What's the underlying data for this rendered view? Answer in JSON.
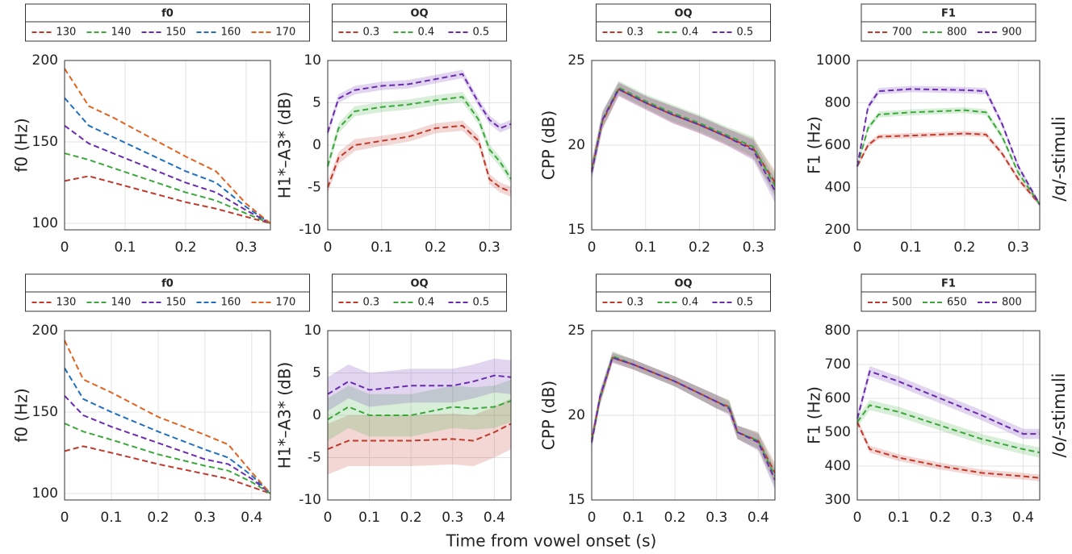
{
  "chart_data": [
    {
      "type": "line",
      "legend_title": "f0",
      "ylabel": "f0 (Hz)",
      "x": [
        0,
        0.04,
        0.08,
        0.12,
        0.16,
        0.2,
        0.25,
        0.3,
        0.34
      ],
      "xlim": [
        0,
        0.34
      ],
      "xticks": [
        0,
        0.1,
        0.2,
        0.3
      ],
      "ylim": [
        96,
        200
      ],
      "yticks": [
        100,
        150,
        200
      ],
      "grid": true,
      "series": [
        {
          "name": "130",
          "color": "#c0392b",
          "values": [
            126,
            129,
            125,
            121,
            117,
            113,
            109,
            104,
            100
          ]
        },
        {
          "name": "140",
          "color": "#3aa83a",
          "values": [
            143,
            139,
            134,
            129,
            124,
            119,
            114,
            106,
            100
          ]
        },
        {
          "name": "150",
          "color": "#6a2bb0",
          "values": [
            160,
            149,
            143,
            137,
            131,
            125,
            119,
            108,
            100
          ]
        },
        {
          "name": "160",
          "color": "#1f6fc0",
          "values": [
            177,
            160,
            153,
            146,
            139,
            132,
            125,
            110,
            100
          ]
        },
        {
          "name": "170",
          "color": "#e2621f",
          "values": [
            195,
            172,
            165,
            157,
            149,
            141,
            132,
            112,
            100
          ]
        }
      ]
    },
    {
      "type": "line",
      "legend_title": "OQ",
      "ylabel": "H1*–A3* (dB)",
      "x": [
        0,
        0.02,
        0.05,
        0.1,
        0.15,
        0.2,
        0.25,
        0.28,
        0.3,
        0.32,
        0.34
      ],
      "xlim": [
        0,
        0.34
      ],
      "xticks": [
        0,
        0.1,
        0.2,
        0.3
      ],
      "ylim": [
        -10,
        10
      ],
      "yticks": [
        -10,
        -5,
        0,
        5,
        10
      ],
      "grid": true,
      "series": [
        {
          "name": "0.3",
          "color": "#c0392b",
          "values": [
            -5,
            -1.5,
            0,
            0.5,
            1,
            2,
            2.3,
            0.5,
            -4,
            -5,
            -5.5
          ],
          "errors": [
            0.7,
            0.7,
            0.7,
            0.6,
            0.6,
            0.6,
            0.6,
            0.6,
            0.6,
            0.6,
            0.6
          ]
        },
        {
          "name": "0.4",
          "color": "#3aa83a",
          "values": [
            -2.5,
            2,
            4,
            4.5,
            4.8,
            5.3,
            5.7,
            3,
            -0.5,
            -2,
            -4
          ],
          "errors": [
            0.6,
            0.6,
            0.6,
            0.6,
            0.6,
            0.6,
            0.6,
            0.6,
            0.6,
            0.6,
            0.6
          ]
        },
        {
          "name": "0.5",
          "color": "#6a2bb0",
          "values": [
            1.5,
            5.5,
            6.5,
            7,
            7.2,
            7.8,
            8.4,
            5,
            3,
            2,
            2.5
          ],
          "errors": [
            0.5,
            0.5,
            0.5,
            0.5,
            0.5,
            0.5,
            0.5,
            0.5,
            0.5,
            0.5,
            0.5
          ]
        }
      ]
    },
    {
      "type": "line",
      "legend_title": "OQ",
      "ylabel": "CPP (dB)",
      "x": [
        0,
        0.02,
        0.05,
        0.1,
        0.15,
        0.2,
        0.25,
        0.3,
        0.34
      ],
      "xlim": [
        0,
        0.34
      ],
      "xticks": [
        0,
        0.1,
        0.2,
        0.3
      ],
      "ylim": [
        15,
        25
      ],
      "yticks": [
        15,
        20,
        25
      ],
      "grid": true,
      "series": [
        {
          "name": "0.3",
          "color": "#c0392b",
          "values": [
            18.6,
            21.4,
            23.3,
            22.5,
            21.8,
            21.2,
            20.5,
            19.8,
            17.8
          ],
          "errors": [
            0.5,
            0.5,
            0.4,
            0.4,
            0.5,
            0.5,
            0.5,
            0.6,
            0.7
          ]
        },
        {
          "name": "0.4",
          "color": "#3aa83a",
          "values": [
            18.5,
            21.5,
            23.4,
            22.6,
            21.9,
            21.3,
            20.6,
            19.9,
            17.6
          ],
          "errors": [
            0.5,
            0.5,
            0.4,
            0.4,
            0.5,
            0.5,
            0.5,
            0.6,
            0.7
          ]
        },
        {
          "name": "0.5",
          "color": "#6a2bb0",
          "values": [
            18.4,
            21.5,
            23.3,
            22.5,
            21.8,
            21.2,
            20.5,
            19.7,
            17.3
          ],
          "errors": [
            0.5,
            0.5,
            0.4,
            0.4,
            0.5,
            0.5,
            0.5,
            0.6,
            0.7
          ]
        }
      ]
    },
    {
      "type": "line",
      "legend_title": "F1",
      "ylabel": "F1 (Hz)",
      "x": [
        0,
        0.02,
        0.04,
        0.1,
        0.2,
        0.24,
        0.27,
        0.3,
        0.34
      ],
      "xlim": [
        0,
        0.34
      ],
      "xticks": [
        0,
        0.1,
        0.2,
        0.3
      ],
      "ylim": [
        200,
        1000
      ],
      "yticks": [
        200,
        400,
        600,
        800,
        1000
      ],
      "grid": true,
      "series": [
        {
          "name": "700",
          "color": "#c0392b",
          "values": [
            500,
            600,
            640,
            645,
            655,
            650,
            560,
            440,
            320
          ],
          "errors": [
            10,
            12,
            12,
            12,
            12,
            12,
            12,
            12,
            10
          ]
        },
        {
          "name": "800",
          "color": "#3aa83a",
          "values": [
            500,
            680,
            745,
            755,
            765,
            755,
            640,
            470,
            320
          ],
          "errors": [
            10,
            14,
            14,
            14,
            14,
            14,
            14,
            12,
            10
          ]
        },
        {
          "name": "900",
          "color": "#6a2bb0",
          "values": [
            500,
            780,
            855,
            865,
            860,
            855,
            700,
            500,
            320
          ],
          "errors": [
            10,
            15,
            15,
            15,
            15,
            15,
            15,
            12,
            10
          ]
        }
      ]
    },
    {
      "type": "line",
      "legend_title": "f0",
      "ylabel": "f0 (Hz)",
      "x": [
        0,
        0.04,
        0.1,
        0.2,
        0.3,
        0.35,
        0.4,
        0.44
      ],
      "xlim": [
        0,
        0.44
      ],
      "xticks": [
        0,
        0.1,
        0.2,
        0.3,
        0.4
      ],
      "ylim": [
        96,
        200
      ],
      "yticks": [
        100,
        150,
        200
      ],
      "grid": true,
      "series": [
        {
          "name": "130",
          "color": "#c0392b",
          "values": [
            126,
            129,
            125,
            118,
            112,
            109,
            104,
            100
          ]
        },
        {
          "name": "140",
          "color": "#3aa83a",
          "values": [
            143,
            138,
            133,
            124,
            117,
            114,
            107,
            100
          ]
        },
        {
          "name": "150",
          "color": "#6a2bb0",
          "values": [
            160,
            148,
            141,
            131,
            121,
            118,
            109,
            100
          ]
        },
        {
          "name": "160",
          "color": "#1f6fc0",
          "values": [
            177,
            158,
            150,
            138,
            127,
            122,
            111,
            100
          ]
        },
        {
          "name": "170",
          "color": "#e2621f",
          "values": [
            194,
            170,
            162,
            147,
            136,
            130,
            113,
            100
          ]
        }
      ]
    },
    {
      "type": "line",
      "legend_title": "OQ",
      "ylabel": "H1*–A3* (dB)",
      "x": [
        0,
        0.05,
        0.1,
        0.2,
        0.3,
        0.35,
        0.4,
        0.44
      ],
      "xlim": [
        0,
        0.44
      ],
      "xticks": [
        0,
        0.1,
        0.2,
        0.3,
        0.4
      ],
      "ylim": [
        -10,
        10
      ],
      "yticks": [
        -10,
        -5,
        0,
        5,
        10
      ],
      "grid": true,
      "series": [
        {
          "name": "0.3",
          "color": "#c0392b",
          "values": [
            -4,
            -3,
            -3,
            -3,
            -2.8,
            -3,
            -2,
            -1
          ],
          "errors": [
            3,
            3,
            3,
            3,
            3,
            3,
            3,
            3
          ]
        },
        {
          "name": "0.4",
          "color": "#3aa83a",
          "values": [
            -0.5,
            1,
            0,
            0,
            1,
            0.8,
            1,
            1.7
          ],
          "errors": [
            2.5,
            2.5,
            2.5,
            2.5,
            2.5,
            2.5,
            2.5,
            2.5
          ]
        },
        {
          "name": "0.5",
          "color": "#6a2bb0",
          "values": [
            2.5,
            4,
            3,
            3.5,
            3.5,
            4,
            4.7,
            4.5
          ],
          "errors": [
            2,
            2,
            2,
            2,
            2,
            2,
            2,
            2
          ]
        }
      ]
    },
    {
      "type": "line",
      "legend_title": "OQ",
      "ylabel": "CPP (dB)",
      "x": [
        0,
        0.02,
        0.05,
        0.1,
        0.2,
        0.3,
        0.33,
        0.35,
        0.4,
        0.44
      ],
      "xlim": [
        0,
        0.44
      ],
      "xticks": [
        0,
        0.1,
        0.2,
        0.3,
        0.4
      ],
      "ylim": [
        15,
        25
      ],
      "yticks": [
        15,
        20,
        25
      ],
      "grid": true,
      "series": [
        {
          "name": "0.3",
          "color": "#c0392b",
          "values": [
            18.6,
            21,
            23.4,
            23,
            22,
            20.8,
            20.5,
            19,
            18.5,
            16.6
          ],
          "errors": [
            0.4,
            0.4,
            0.3,
            0.3,
            0.3,
            0.4,
            0.4,
            0.4,
            0.5,
            0.6
          ]
        },
        {
          "name": "0.4",
          "color": "#3aa83a",
          "values": [
            18.5,
            21,
            23.5,
            23,
            22,
            20.8,
            20.5,
            19,
            18.5,
            16.4
          ],
          "errors": [
            0.4,
            0.4,
            0.3,
            0.3,
            0.3,
            0.4,
            0.4,
            0.4,
            0.5,
            0.6
          ]
        },
        {
          "name": "0.5",
          "color": "#6a2bb0",
          "values": [
            18.4,
            21.1,
            23.4,
            23,
            22,
            20.8,
            20.4,
            19,
            18.4,
            16.2
          ],
          "errors": [
            0.4,
            0.4,
            0.3,
            0.3,
            0.3,
            0.4,
            0.4,
            0.4,
            0.5,
            0.6
          ]
        }
      ]
    },
    {
      "type": "line",
      "legend_title": "F1",
      "ylabel": "F1 (Hz)",
      "x": [
        0,
        0.03,
        0.1,
        0.2,
        0.3,
        0.4,
        0.44
      ],
      "xlim": [
        0,
        0.44
      ],
      "xticks": [
        0,
        0.1,
        0.2,
        0.3,
        0.4
      ],
      "ylim": [
        300,
        800
      ],
      "yticks": [
        300,
        400,
        500,
        600,
        700,
        800
      ],
      "grid": true,
      "series": [
        {
          "name": "500",
          "color": "#c0392b",
          "values": [
            530,
            450,
            425,
            400,
            380,
            370,
            365
          ],
          "errors": [
            10,
            10,
            10,
            10,
            10,
            10,
            10
          ]
        },
        {
          "name": "650",
          "color": "#3aa83a",
          "values": [
            530,
            580,
            560,
            520,
            480,
            450,
            440
          ],
          "errors": [
            15,
            15,
            15,
            15,
            15,
            15,
            15
          ]
        },
        {
          "name": "800",
          "color": "#6a2bb0",
          "values": [
            540,
            680,
            650,
            600,
            550,
            495,
            495
          ],
          "errors": [
            15,
            15,
            15,
            15,
            15,
            15,
            15
          ]
        }
      ]
    }
  ],
  "xlabel": "Time from vowel onset (s)",
  "row_labels": [
    "/ɑ/-stimuli",
    "/o/-stimuli"
  ]
}
